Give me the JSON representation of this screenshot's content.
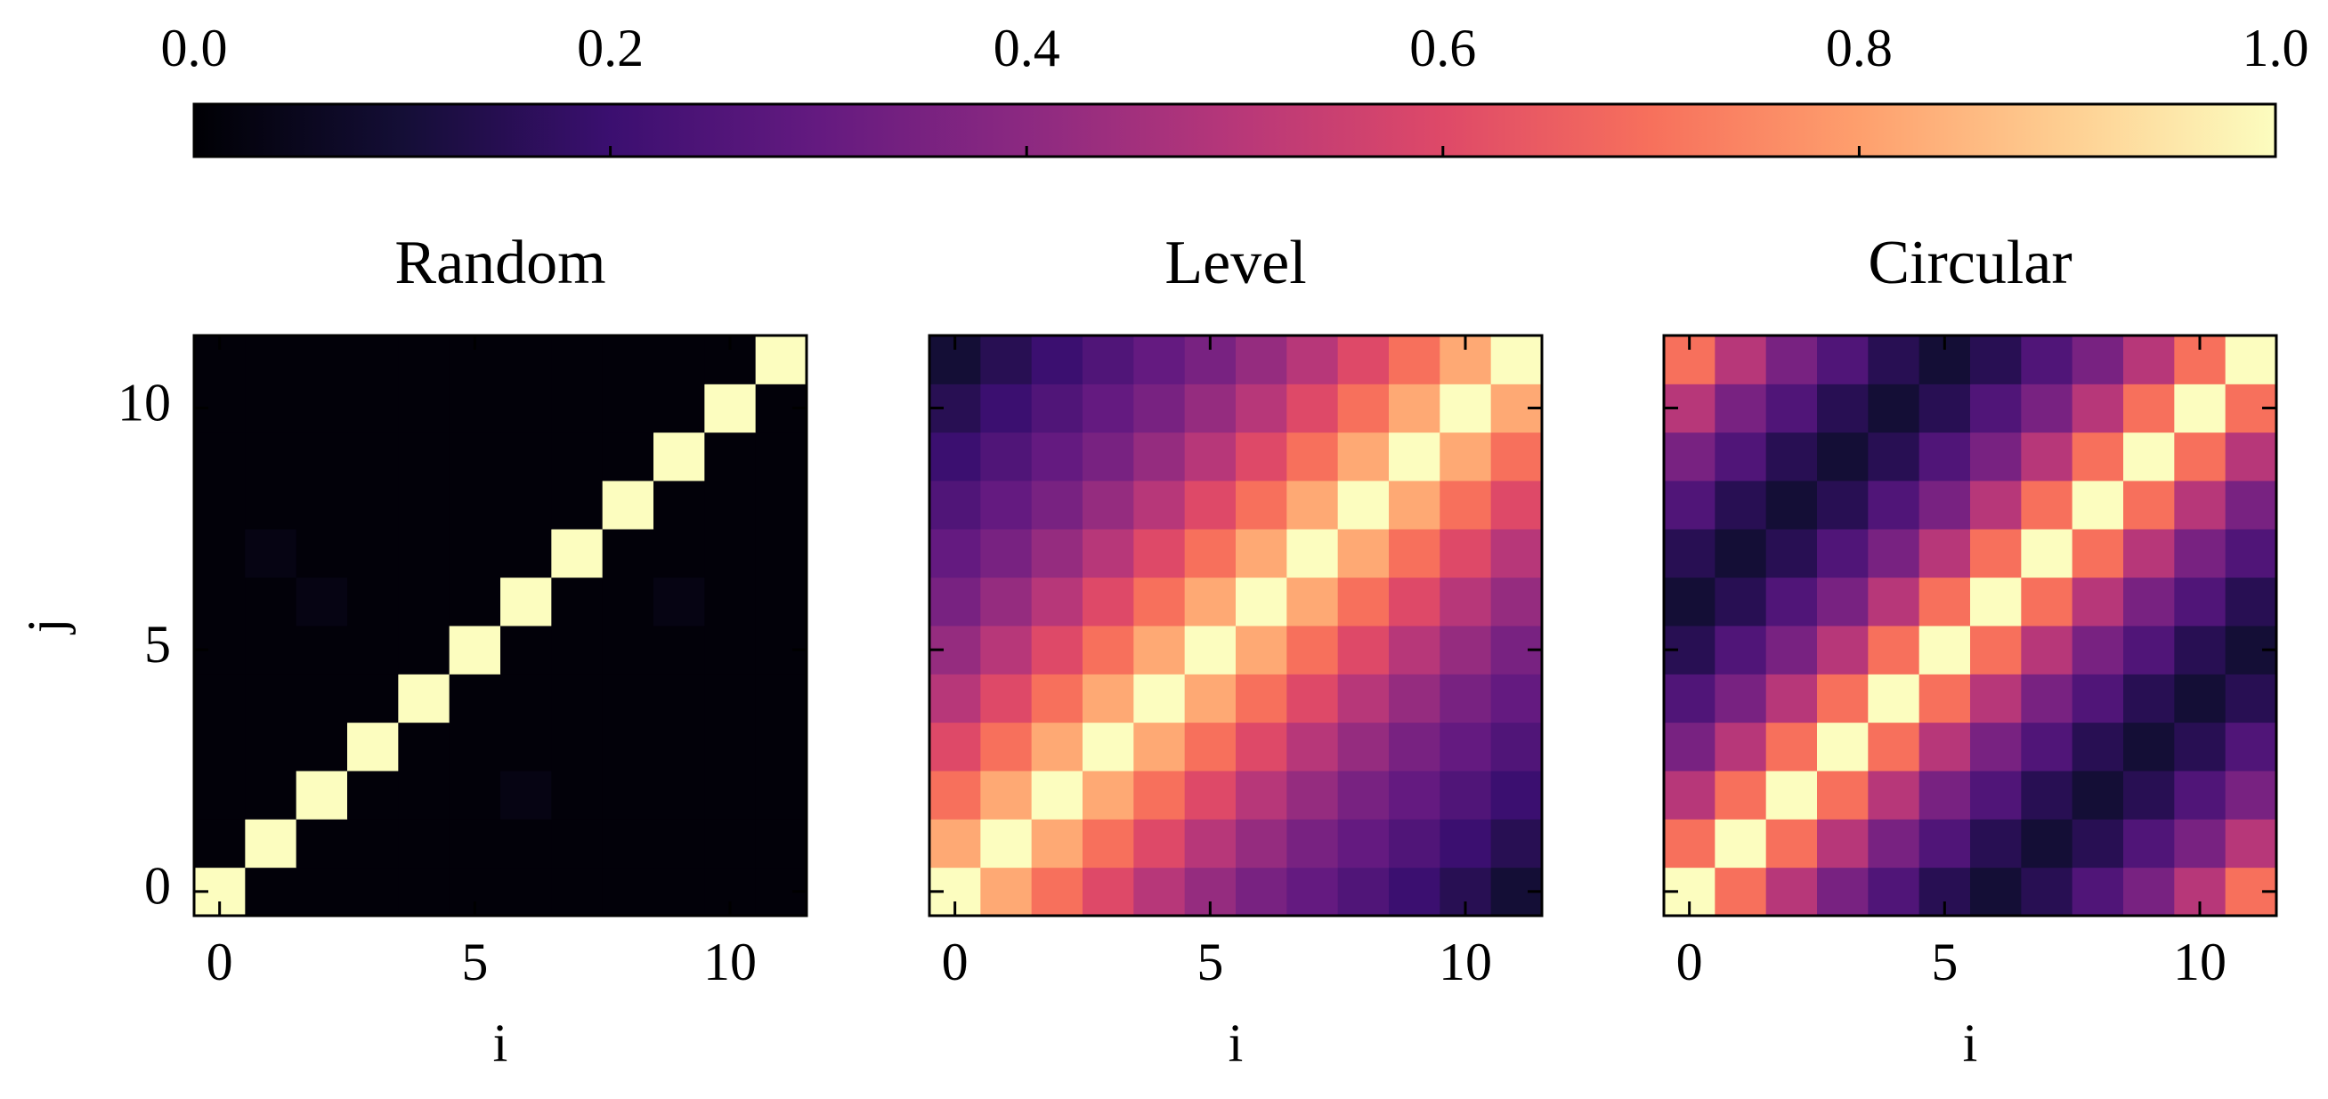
{
  "colorbar": {
    "colormap": "magma",
    "lim": [
      0,
      1
    ],
    "ticks": [
      {
        "value": 0,
        "label": "0.0"
      },
      {
        "value": 0.2,
        "label": "0.2"
      },
      {
        "value": 0.4,
        "label": "0.4"
      },
      {
        "value": 0.6,
        "label": "0.6"
      },
      {
        "value": 0.8,
        "label": "0.8"
      },
      {
        "value": 1,
        "label": "1.0"
      }
    ]
  },
  "chart_data": [
    {
      "type": "heatmap",
      "title": "Random",
      "xlabel": "i",
      "ylabel": "j",
      "xlim": [
        -0.5,
        11.5
      ],
      "ylim": [
        -0.5,
        11.5
      ],
      "xticks": [
        0,
        5,
        10
      ],
      "yticks": [
        0,
        5,
        10
      ],
      "show_yticklabels": true,
      "z": [
        [
          1,
          0.01,
          0.01,
          0.01,
          0.01,
          0.01,
          0.01,
          0.01,
          0.01,
          0.01,
          0.01,
          0.01
        ],
        [
          0.01,
          1,
          0.01,
          0.01,
          0.01,
          0.01,
          0.01,
          0.01,
          0.01,
          0.01,
          0.01,
          0.01
        ],
        [
          0.01,
          0.01,
          1,
          0.01,
          0.01,
          0.01,
          0.03,
          0.01,
          0.01,
          0.01,
          0.01,
          0.01
        ],
        [
          0.01,
          0.01,
          0.01,
          1,
          0.01,
          0.01,
          0.01,
          0.01,
          0.01,
          0.01,
          0.01,
          0.01
        ],
        [
          0.01,
          0.01,
          0.01,
          0.01,
          1,
          0.01,
          0.01,
          0.01,
          0.01,
          0.01,
          0.01,
          0.01
        ],
        [
          0.01,
          0.01,
          0.01,
          0.01,
          0.01,
          1,
          0.01,
          0.01,
          0.01,
          0.01,
          0.01,
          0.01
        ],
        [
          0.01,
          0.01,
          0.03,
          0.01,
          0.01,
          0.01,
          1,
          0.01,
          0.01,
          0.03,
          0.01,
          0.01
        ],
        [
          0.01,
          0.03,
          0.01,
          0.01,
          0.01,
          0.01,
          0.01,
          1,
          0.01,
          0.01,
          0.01,
          0.01
        ],
        [
          0.01,
          0.01,
          0.01,
          0.01,
          0.01,
          0.01,
          0.01,
          0.01,
          1,
          0.01,
          0.01,
          0.01
        ],
        [
          0.01,
          0.01,
          0.01,
          0.01,
          0.01,
          0.01,
          0.01,
          0.01,
          0.01,
          1,
          0.01,
          0.01
        ],
        [
          0.01,
          0.01,
          0.01,
          0.01,
          0.01,
          0.01,
          0.01,
          0.01,
          0.01,
          0.01,
          1,
          0.01
        ],
        [
          0.01,
          0.01,
          0.01,
          0.01,
          0.01,
          0.01,
          0.01,
          0.01,
          0.01,
          0.01,
          0.01,
          1
        ]
      ]
    },
    {
      "type": "heatmap",
      "title": "Level",
      "xlabel": "i",
      "xlim": [
        -0.5,
        11.5
      ],
      "ylim": [
        -0.5,
        11.5
      ],
      "xticks": [
        0,
        5,
        10
      ],
      "yticks": [
        0,
        5,
        10
      ],
      "show_yticklabels": false,
      "z": [
        [
          1,
          0.82,
          0.7,
          0.6,
          0.5,
          0.42,
          0.35,
          0.3,
          0.25,
          0.2,
          0.15,
          0.1
        ],
        [
          0.82,
          1,
          0.82,
          0.7,
          0.6,
          0.5,
          0.42,
          0.35,
          0.3,
          0.25,
          0.2,
          0.15
        ],
        [
          0.7,
          0.82,
          1,
          0.82,
          0.7,
          0.6,
          0.5,
          0.42,
          0.35,
          0.3,
          0.25,
          0.2
        ],
        [
          0.6,
          0.7,
          0.82,
          1,
          0.82,
          0.7,
          0.6,
          0.5,
          0.42,
          0.35,
          0.3,
          0.25
        ],
        [
          0.5,
          0.6,
          0.7,
          0.82,
          1,
          0.82,
          0.7,
          0.6,
          0.5,
          0.42,
          0.35,
          0.3
        ],
        [
          0.42,
          0.5,
          0.6,
          0.7,
          0.82,
          1,
          0.82,
          0.7,
          0.6,
          0.5,
          0.42,
          0.35
        ],
        [
          0.35,
          0.42,
          0.5,
          0.6,
          0.7,
          0.82,
          1,
          0.82,
          0.7,
          0.6,
          0.5,
          0.42
        ],
        [
          0.3,
          0.35,
          0.42,
          0.5,
          0.6,
          0.7,
          0.82,
          1,
          0.82,
          0.7,
          0.6,
          0.5
        ],
        [
          0.25,
          0.3,
          0.35,
          0.42,
          0.5,
          0.6,
          0.7,
          0.82,
          1,
          0.82,
          0.7,
          0.6
        ],
        [
          0.2,
          0.25,
          0.3,
          0.35,
          0.42,
          0.5,
          0.6,
          0.7,
          0.82,
          1,
          0.82,
          0.7
        ],
        [
          0.15,
          0.2,
          0.25,
          0.3,
          0.35,
          0.42,
          0.5,
          0.6,
          0.7,
          0.82,
          1,
          0.82
        ],
        [
          0.1,
          0.15,
          0.2,
          0.25,
          0.3,
          0.35,
          0.42,
          0.5,
          0.6,
          0.7,
          0.82,
          1
        ]
      ]
    },
    {
      "type": "heatmap",
      "title": "Circular",
      "xlabel": "i",
      "xlim": [
        -0.5,
        11.5
      ],
      "ylim": [
        -0.5,
        11.5
      ],
      "xticks": [
        0,
        5,
        10
      ],
      "yticks": [
        0,
        5,
        10
      ],
      "show_yticklabels": false,
      "z": [
        [
          1,
          0.7,
          0.5,
          0.35,
          0.25,
          0.15,
          0.1,
          0.15,
          0.25,
          0.35,
          0.5,
          0.7
        ],
        [
          0.7,
          1,
          0.7,
          0.5,
          0.35,
          0.25,
          0.15,
          0.1,
          0.15,
          0.25,
          0.35,
          0.5
        ],
        [
          0.5,
          0.7,
          1,
          0.7,
          0.5,
          0.35,
          0.25,
          0.15,
          0.1,
          0.15,
          0.25,
          0.35
        ],
        [
          0.35,
          0.5,
          0.7,
          1,
          0.7,
          0.5,
          0.35,
          0.25,
          0.15,
          0.1,
          0.15,
          0.25
        ],
        [
          0.25,
          0.35,
          0.5,
          0.7,
          1,
          0.7,
          0.5,
          0.35,
          0.25,
          0.15,
          0.1,
          0.15
        ],
        [
          0.15,
          0.25,
          0.35,
          0.5,
          0.7,
          1,
          0.7,
          0.5,
          0.35,
          0.25,
          0.15,
          0.1
        ],
        [
          0.1,
          0.15,
          0.25,
          0.35,
          0.5,
          0.7,
          1,
          0.7,
          0.5,
          0.35,
          0.25,
          0.15
        ],
        [
          0.15,
          0.1,
          0.15,
          0.25,
          0.35,
          0.5,
          0.7,
          1,
          0.7,
          0.5,
          0.35,
          0.25
        ],
        [
          0.25,
          0.15,
          0.1,
          0.15,
          0.25,
          0.35,
          0.5,
          0.7,
          1,
          0.7,
          0.5,
          0.35
        ],
        [
          0.35,
          0.25,
          0.15,
          0.1,
          0.15,
          0.25,
          0.35,
          0.5,
          0.7,
          1,
          0.7,
          0.5
        ],
        [
          0.5,
          0.35,
          0.25,
          0.15,
          0.1,
          0.15,
          0.25,
          0.35,
          0.5,
          0.7,
          1,
          0.7
        ],
        [
          0.7,
          0.5,
          0.35,
          0.25,
          0.15,
          0.1,
          0.15,
          0.25,
          0.35,
          0.5,
          0.7,
          1
        ]
      ]
    }
  ]
}
